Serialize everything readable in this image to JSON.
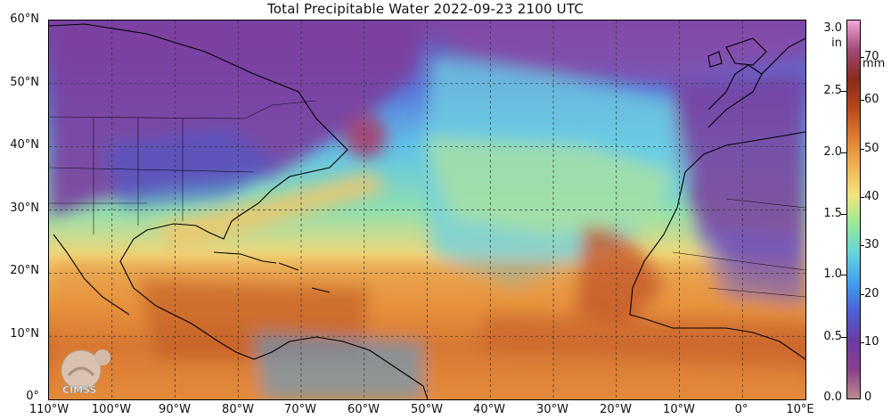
{
  "title": "Total Precipitable Water  2022-09-23 2100 UTC",
  "logo_text": "CIMSS",
  "lat_labels": [
    "60°N",
    "50°N",
    "40°N",
    "30°N",
    "20°N",
    "10°N",
    "0°"
  ],
  "lon_labels": [
    "110°W",
    "100°W",
    "90°W",
    "80°W",
    "70°W",
    "60°W",
    "50°W",
    "40°W",
    "30°W",
    "20°W",
    "10°W",
    "0°",
    "10°E"
  ],
  "colorbar": {
    "left_unit_value": "3.0",
    "left_unit": "in",
    "right_unit": "mm",
    "left_ticks": [
      "2.5",
      "2.0",
      "1.5",
      "1.0",
      "0.5",
      "0.0"
    ],
    "right_ticks": [
      "70",
      "60",
      "50",
      "40",
      "30",
      "20",
      "10",
      "0"
    ],
    "range_mm": [
      0,
      78
    ],
    "colors": [
      "#b98c8c",
      "#8a3f8a",
      "#6a3ba5",
      "#4d5fd8",
      "#3fa0f0",
      "#62d6d8",
      "#9be89a",
      "#f1e67a",
      "#f0b350",
      "#e07b2e",
      "#b8461c",
      "#8a2a1e",
      "#a04a78",
      "#f5a6d8"
    ]
  },
  "colors": {
    "dry": "#7b3fa0",
    "moist": "#e9893a",
    "very_moist": "#a5401f",
    "mid": "#6fd2cc",
    "ocean_bg": "#58b9e8"
  }
}
